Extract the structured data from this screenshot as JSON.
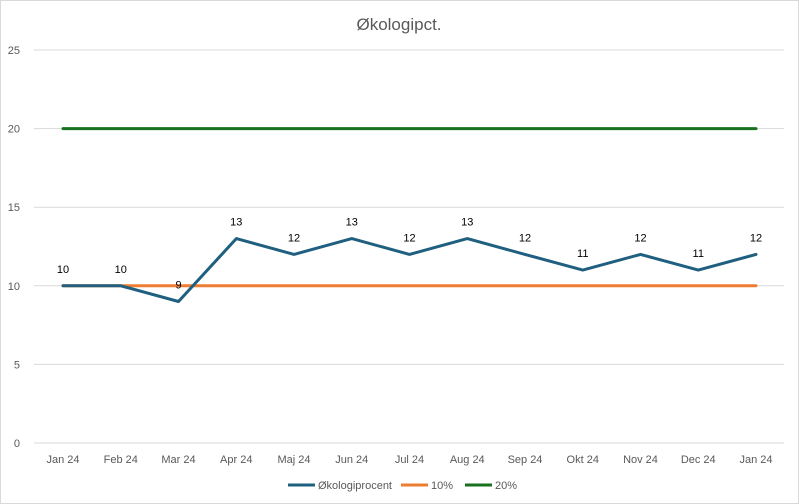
{
  "chart_data": {
    "type": "line",
    "title": "Økologipct.",
    "xlabel": "",
    "ylabel": "",
    "categories": [
      "Jan 24",
      "Feb 24",
      "Mar 24",
      "Apr 24",
      "Maj 24",
      "Jun 24",
      "Jul 24",
      "Aug 24",
      "Sep 24",
      "Okt 24",
      "Nov 24",
      "Dec 24",
      "Jan 24"
    ],
    "ylim": [
      0,
      25
    ],
    "yticks": [
      0,
      5,
      10,
      15,
      20,
      25
    ],
    "grid": true,
    "legend_position": "bottom",
    "series": [
      {
        "name": "Økologiprocent",
        "color": "#1f5f7f",
        "values": [
          10,
          10,
          9,
          13,
          12,
          13,
          12,
          13,
          12,
          11,
          12,
          11,
          12
        ],
        "data_labels": true
      },
      {
        "name": "10%",
        "color": "#ed7d31",
        "values": [
          10,
          10,
          10,
          10,
          10,
          10,
          10,
          10,
          10,
          10,
          10,
          10,
          10
        ],
        "data_labels": false
      },
      {
        "name": "20%",
        "color": "#17711e",
        "values": [
          20,
          20,
          20,
          20,
          20,
          20,
          20,
          20,
          20,
          20,
          20,
          20,
          20
        ],
        "data_labels": false
      }
    ]
  }
}
